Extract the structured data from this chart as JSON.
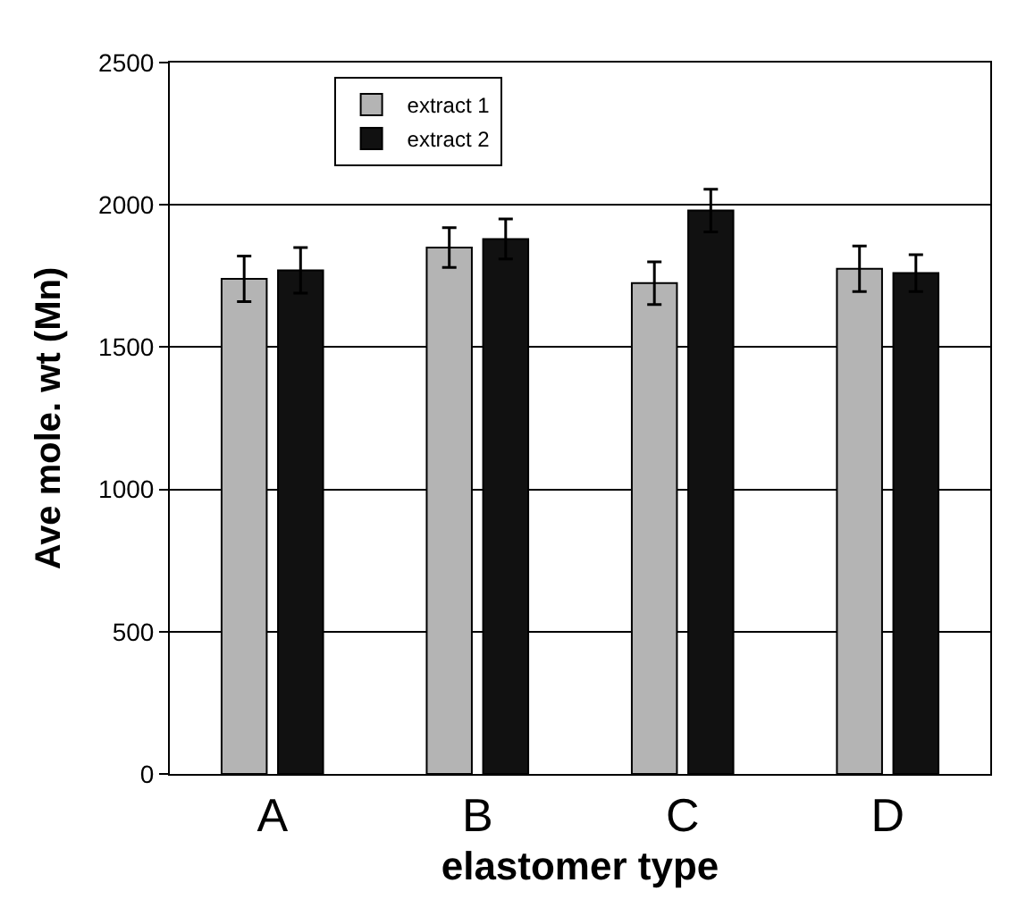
{
  "chart_data": {
    "type": "bar",
    "xlabel": "elastomer type",
    "ylabel": "Ave mole. wt (Mn)",
    "categories": [
      "A",
      "B",
      "C",
      "D"
    ],
    "series": [
      {
        "name": "extract 1",
        "color": "#b4b4b4",
        "values": [
          1740,
          1850,
          1725,
          1775
        ],
        "errors": [
          80,
          70,
          75,
          80
        ]
      },
      {
        "name": "extract 2",
        "color": "#111111",
        "values": [
          1770,
          1880,
          1980,
          1760
        ],
        "errors": [
          80,
          70,
          75,
          65
        ]
      }
    ],
    "ylim": [
      0,
      2500
    ],
    "yticks": [
      0,
      500,
      1000,
      1500,
      2000,
      2500
    ],
    "grid": "y",
    "legend": "top left"
  }
}
